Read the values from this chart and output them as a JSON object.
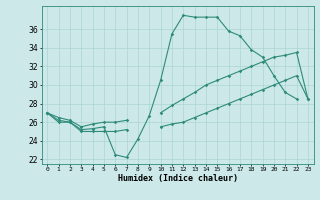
{
  "xlabel": "Humidex (Indice chaleur)",
  "x_values": [
    0,
    1,
    2,
    3,
    4,
    5,
    6,
    7,
    8,
    9,
    10,
    11,
    12,
    13,
    14,
    15,
    16,
    17,
    18,
    19,
    20,
    21,
    22,
    23
  ],
  "line_main": [
    27,
    26.2,
    26,
    25.2,
    25.3,
    25.5,
    22.5,
    22.2,
    24.2,
    26.7,
    30.5,
    35.5,
    37.5,
    37.3,
    37.3,
    37.3,
    35.8,
    35.3,
    33.8,
    33,
    31,
    29.2,
    28.5,
    null
  ],
  "line_low": [
    27,
    26,
    26,
    25,
    25,
    25,
    25,
    25.2,
    null,
    null,
    25.5,
    25.8,
    26.0,
    26.5,
    27.0,
    27.5,
    28.0,
    28.5,
    29.0,
    29.5,
    30.0,
    30.5,
    31.0,
    28.5
  ],
  "line_high": [
    27,
    26.5,
    26.2,
    25.5,
    25.8,
    26.0,
    26.0,
    26.2,
    null,
    null,
    27.0,
    27.8,
    28.5,
    29.2,
    30.0,
    30.5,
    31.0,
    31.5,
    32.0,
    32.5,
    33.0,
    33.2,
    33.5,
    28.5
  ],
  "color": "#2e8b7a",
  "bg_color": "#cce8e8",
  "grid_color": "#aad4d4",
  "ylim": [
    21.5,
    38.5
  ],
  "yticks": [
    22,
    24,
    26,
    28,
    30,
    32,
    34,
    36
  ],
  "xlim": [
    -0.5,
    23.5
  ]
}
